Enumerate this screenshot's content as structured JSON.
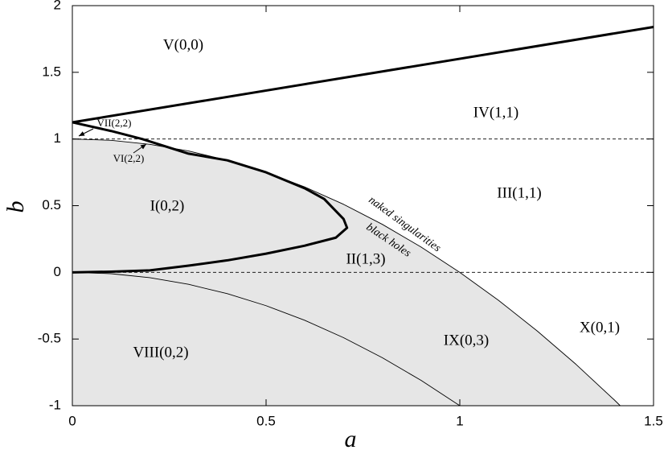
{
  "chart_data": {
    "type": "line",
    "xlabel": "a",
    "ylabel": "b",
    "xlim": [
      0,
      1.5
    ],
    "ylim": [
      -1,
      2
    ],
    "xticks": [
      0,
      0.5,
      1,
      1.5
    ],
    "yticks": [
      -1,
      -0.5,
      0,
      0.5,
      1,
      1.5,
      2
    ],
    "hlines": [
      1,
      0
    ],
    "shade_color": "#e6e6e6",
    "series": [
      {
        "color": "#000000",
        "style": "thick",
        "x": [
          0,
          1.5
        ],
        "values": [
          1.125,
          1.84
        ]
      },
      {
        "color": "#000000",
        "style": "thin",
        "shade_below": true,
        "x": [
          0,
          0.1,
          0.2,
          0.3,
          0.4,
          0.5,
          0.6,
          0.7,
          0.8,
          0.9,
          1.0,
          1.1,
          1.2,
          1.3,
          1.4,
          1.414
        ],
        "values": [
          1,
          0.99,
          0.96,
          0.91,
          0.84,
          0.75,
          0.64,
          0.51,
          0.36,
          0.19,
          0,
          -0.21,
          -0.44,
          -0.69,
          -0.96,
          -1
        ]
      },
      {
        "color": "#000000",
        "style": "thin",
        "x": [
          0,
          0.1,
          0.2,
          0.3,
          0.4,
          0.5,
          0.6,
          0.7,
          0.8,
          0.9,
          1.0
        ],
        "values": [
          0,
          -0.01,
          -0.04,
          -0.09,
          -0.16,
          -0.25,
          -0.36,
          -0.49,
          -0.64,
          -0.81,
          -1
        ]
      },
      {
        "color": "#000000",
        "style": "thick",
        "x": [
          0,
          0.1,
          0.2,
          0.3,
          0.4,
          0.5,
          0.6,
          0.68,
          0.709,
          0.7,
          0.65,
          0.6,
          0.5,
          0.4,
          0.3,
          0.18,
          0.1,
          0
        ],
        "values": [
          0,
          0.005,
          0.015,
          0.05,
          0.09,
          0.14,
          0.2,
          0.26,
          0.334,
          0.4,
          0.55,
          0.63,
          0.75,
          0.84,
          0.89,
          1.0,
          1.06,
          1.125
        ]
      }
    ],
    "annotations": [
      "V(0,0)",
      "IV(1,1)",
      "VII(2,2)",
      "VI(2,2)",
      "I(0,2)",
      "III(1,1)",
      "naked singularities",
      "black holes",
      "II(1,3)",
      "IX(0,3)",
      "X(0,1)",
      "VIII(0,2)"
    ]
  }
}
